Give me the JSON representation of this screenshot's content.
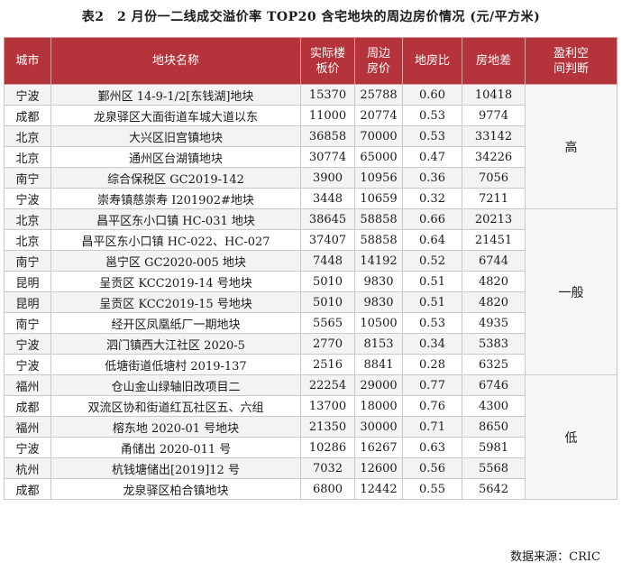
{
  "title": "表2　2 月份一二线成交溢价率 TOP20 含宅地块的周边房价情况 (元/平方米)",
  "headers": {
    "city": "城市",
    "plot": "地块名称",
    "price_l1": "实际楼",
    "price_l2": "板价",
    "around_l1": "周边",
    "around_l2": "房价",
    "ratio": "地房比",
    "diff": "房地差",
    "judge_l1": "盈利空",
    "judge_l2": "间判断"
  },
  "groups": [
    "高",
    "一般",
    "低"
  ],
  "rows": [
    {
      "city": "宁波",
      "plot": "鄞州区 14-9-1/2[东钱湖]地块",
      "price": "15370",
      "around": "25788",
      "ratio": "0.60",
      "diff": "10418"
    },
    {
      "city": "成都",
      "plot": "龙泉驿区大面街道车城大道以东",
      "price": "11000",
      "around": "20774",
      "ratio": "0.53",
      "diff": "9774"
    },
    {
      "city": "北京",
      "plot": "大兴区旧宫镇地块",
      "price": "36858",
      "around": "70000",
      "ratio": "0.53",
      "diff": "33142"
    },
    {
      "city": "北京",
      "plot": "通州区台湖镇地块",
      "price": "30774",
      "around": "65000",
      "ratio": "0.47",
      "diff": "34226"
    },
    {
      "city": "南宁",
      "plot": "综合保税区 GC2019-142",
      "price": "3900",
      "around": "10956",
      "ratio": "0.36",
      "diff": "7056"
    },
    {
      "city": "宁波",
      "plot": "崇寿镇慈崇寿 I201902#地块",
      "price": "3448",
      "around": "10659",
      "ratio": "0.32",
      "diff": "7211"
    },
    {
      "city": "北京",
      "plot": "昌平区东小口镇 HC-031 地块",
      "price": "38645",
      "around": "58858",
      "ratio": "0.66",
      "diff": "20213"
    },
    {
      "city": "北京",
      "plot": "昌平区东小口镇 HC-022、HC-027",
      "price": "37407",
      "around": "58858",
      "ratio": "0.64",
      "diff": "21451"
    },
    {
      "city": "南宁",
      "plot": "邕宁区 GC2020-005 地块",
      "price": "7448",
      "around": "14192",
      "ratio": "0.52",
      "diff": "6744"
    },
    {
      "city": "昆明",
      "plot": "呈贡区 KCC2019-14 号地块",
      "price": "5010",
      "around": "9830",
      "ratio": "0.51",
      "diff": "4820"
    },
    {
      "city": "昆明",
      "plot": "呈贡区 KCC2019-15 号地块",
      "price": "5010",
      "around": "9830",
      "ratio": "0.51",
      "diff": "4820"
    },
    {
      "city": "南宁",
      "plot": "经开区凤凰纸厂一期地块",
      "price": "5565",
      "around": "10500",
      "ratio": "0.53",
      "diff": "4935"
    },
    {
      "city": "宁波",
      "plot": "泗门镇西大江社区 2020-5",
      "price": "2770",
      "around": "8153",
      "ratio": "0.34",
      "diff": "5383"
    },
    {
      "city": "宁波",
      "plot": "低塘街道低塘村 2019-137",
      "price": "2516",
      "around": "8841",
      "ratio": "0.28",
      "diff": "6325"
    },
    {
      "city": "福州",
      "plot": "仓山金山绿轴旧改项目二",
      "price": "22254",
      "around": "29000",
      "ratio": "0.77",
      "diff": "6746"
    },
    {
      "city": "成都",
      "plot": "双流区协和街道红瓦社区五、六组",
      "price": "13700",
      "around": "18000",
      "ratio": "0.76",
      "diff": "4300"
    },
    {
      "city": "福州",
      "plot": "榕东地 2020-01 号地块",
      "price": "21350",
      "around": "30000",
      "ratio": "0.71",
      "diff": "8650"
    },
    {
      "city": "宁波",
      "plot": "甬储出 2020-011 号",
      "price": "10286",
      "around": "16267",
      "ratio": "0.63",
      "diff": "5981"
    },
    {
      "city": "杭州",
      "plot": "杭钱塘储出[2019]12 号",
      "price": "7032",
      "around": "12600",
      "ratio": "0.56",
      "diff": "5568"
    },
    {
      "city": "成都",
      "plot": "龙泉驿区柏合镇地块",
      "price": "6800",
      "around": "12442",
      "ratio": "0.55",
      "diff": "5642"
    }
  ],
  "source": "数据来源：CRIC"
}
